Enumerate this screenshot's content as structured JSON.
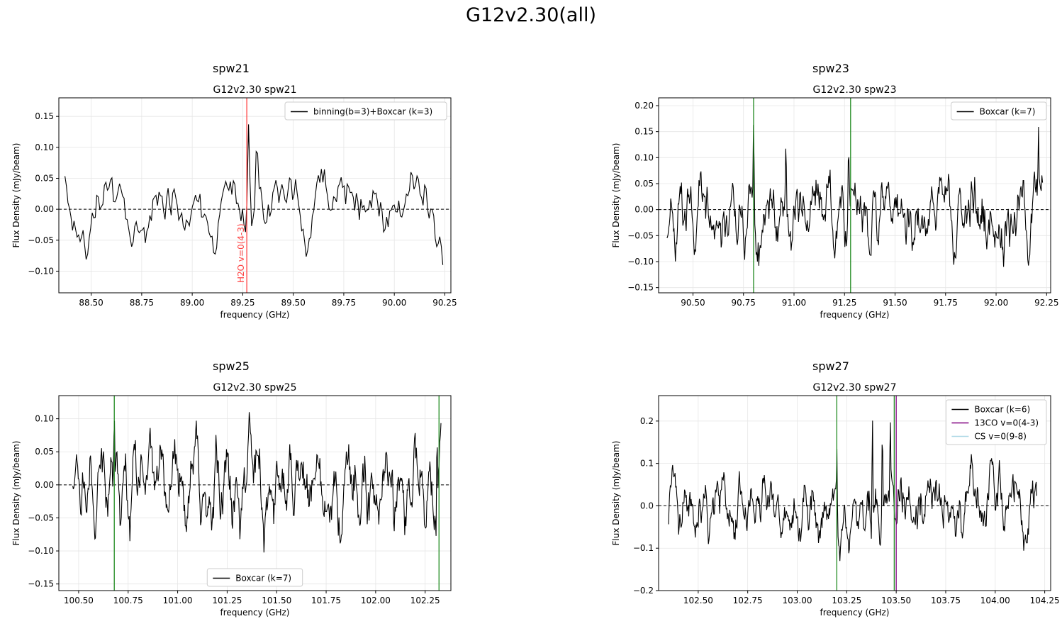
{
  "suptitle": "G12v2.30(all)",
  "chart_data": [
    {
      "type": "line",
      "label": "spw21",
      "title": "G12v2.30 spw21",
      "xlabel": "frequency (GHz)",
      "ylabel": "Flux Density (mJy/beam)",
      "xlim": [
        88.34,
        90.28
      ],
      "ylim": [
        -0.135,
        0.18
      ],
      "xticks": [
        88.5,
        88.75,
        89.0,
        89.25,
        89.5,
        89.75,
        90.0,
        90.25
      ],
      "xticklabels": [
        "88.50",
        "88.75",
        "89.00",
        "89.25",
        "89.50",
        "89.75",
        "90.00",
        "90.25"
      ],
      "yticks": [
        -0.1,
        -0.05,
        0.0,
        0.05,
        0.1,
        0.15
      ],
      "yticklabels": [
        "−0.10",
        "−0.05",
        "0.00",
        "0.05",
        "0.10",
        "0.15"
      ],
      "grid": true,
      "legend": "top-right",
      "series": [
        {
          "name": "binning(b=3)+Boxcar (k=3)",
          "color": "#000000",
          "x_range": [
            88.37,
            90.24
          ],
          "n": 250,
          "seed": 21,
          "noise": 0.045,
          "offset": 0.0,
          "ymin": -0.12,
          "ymax": 0.105,
          "peaks": [
            {
              "x": 89.28,
              "amp": 0.16
            },
            {
              "x": 89.32,
              "amp": 0.13
            }
          ]
        }
      ],
      "vlines": [
        {
          "x": 89.27,
          "color": "#ff4444",
          "label": "H2O v=0(4-3)"
        }
      ],
      "hline": 0.0
    },
    {
      "type": "line",
      "label": "spw23",
      "title": "G12v2.30 spw23",
      "xlabel": "frequency (GHz)",
      "ylabel": "Flux Density (mJy/beam)",
      "xlim": [
        90.33,
        92.27
      ],
      "ylim": [
        -0.16,
        0.215
      ],
      "xticks": [
        90.5,
        90.75,
        91.0,
        91.25,
        91.5,
        91.75,
        92.0,
        92.25
      ],
      "xticklabels": [
        "90.50",
        "90.75",
        "91.00",
        "91.25",
        "91.50",
        "91.75",
        "92.00",
        "92.25"
      ],
      "yticks": [
        -0.15,
        -0.1,
        -0.05,
        0.0,
        0.05,
        0.1,
        0.15,
        0.2
      ],
      "yticklabels": [
        "−0.15",
        "−0.10",
        "−0.05",
        "0.00",
        "0.05",
        "0.10",
        "0.15",
        "0.20"
      ],
      "grid": true,
      "legend": "top-right",
      "series": [
        {
          "name": "Boxcar (k=7)",
          "color": "#000000",
          "x_range": [
            90.37,
            92.23
          ],
          "n": 560,
          "seed": 23,
          "noise": 0.05,
          "offset": -0.01,
          "ymin": -0.14,
          "ymax": 0.11,
          "peaks": [
            {
              "x": 90.8,
              "amp": 0.2
            },
            {
              "x": 90.96,
              "amp": 0.15
            },
            {
              "x": 91.27,
              "amp": 0.145
            },
            {
              "x": 92.21,
              "amp": 0.16
            }
          ]
        }
      ],
      "vlines": [
        {
          "x": 90.8,
          "color": "#228b22"
        },
        {
          "x": 91.28,
          "color": "#228b22"
        }
      ],
      "hline": 0.0
    },
    {
      "type": "line",
      "label": "spw25",
      "title": "G12v2.30 spw25",
      "xlabel": "frequency (GHz)",
      "ylabel": "Flux Density (mJy/beam)",
      "xlim": [
        100.4,
        102.38
      ],
      "ylim": [
        -0.16,
        0.135
      ],
      "xticks": [
        100.5,
        100.75,
        101.0,
        101.25,
        101.5,
        101.75,
        102.0,
        102.25
      ],
      "xticklabels": [
        "100.50",
        "100.75",
        "101.00",
        "101.25",
        "101.50",
        "101.75",
        "102.00",
        "102.25"
      ],
      "yticks": [
        -0.15,
        -0.1,
        -0.05,
        0.0,
        0.05,
        0.1
      ],
      "yticklabels": [
        "−0.15",
        "−0.10",
        "−0.05",
        "0.00",
        "0.05",
        "0.10"
      ],
      "grid": true,
      "legend": "bottom-center",
      "series": [
        {
          "name": "Boxcar (k=7)",
          "color": "#000000",
          "x_range": [
            100.47,
            102.33
          ],
          "n": 600,
          "seed": 25,
          "noise": 0.055,
          "offset": 0.0,
          "ymin": -0.145,
          "ymax": 0.12,
          "peaks": [
            {
              "x": 100.68,
              "amp": 0.12
            },
            {
              "x": 102.31,
              "amp": 0.1
            }
          ]
        }
      ],
      "vlines": [
        {
          "x": 100.68,
          "color": "#228b22"
        },
        {
          "x": 102.32,
          "color": "#228b22"
        }
      ],
      "hline": 0.0
    },
    {
      "type": "line",
      "label": "spw27",
      "title": "G12v2.30 spw27",
      "xlabel": "frequency (GHz)",
      "ylabel": "Flux Density (mJy/beam)",
      "xlim": [
        102.3,
        104.28
      ],
      "ylim": [
        -0.2,
        0.26
      ],
      "xticks": [
        102.5,
        102.75,
        103.0,
        103.25,
        103.5,
        103.75,
        104.0,
        104.25
      ],
      "xticklabels": [
        "102.50",
        "102.75",
        "103.00",
        "103.25",
        "103.50",
        "103.75",
        "104.00",
        "104.25"
      ],
      "yticks": [
        -0.2,
        -0.1,
        0.0,
        0.1,
        0.2
      ],
      "yticklabels": [
        "−0.2",
        "−0.1",
        "0.0",
        "0.1",
        "0.2"
      ],
      "grid": true,
      "legend": "top-right",
      "series": [
        {
          "name": "Boxcar (k=6)",
          "color": "#000000",
          "x_range": [
            102.35,
            104.21
          ],
          "n": 620,
          "seed": 27,
          "noise": 0.065,
          "offset": 0.0,
          "ymin": -0.18,
          "ymax": 0.15,
          "peaks": [
            {
              "x": 103.2,
              "amp": 0.15
            },
            {
              "x": 103.38,
              "amp": 0.24
            },
            {
              "x": 103.43,
              "amp": 0.22
            },
            {
              "x": 103.47,
              "amp": 0.23
            }
          ]
        },
        {
          "name": "13CO v=0(4-3)",
          "color": "#800080",
          "line_only": true
        },
        {
          "name": "CS v=0(9-8)",
          "color": "#add8e6",
          "line_only": true
        }
      ],
      "vlines": [
        {
          "x": 103.2,
          "color": "#228b22"
        },
        {
          "x": 103.49,
          "color": "#228b22"
        },
        {
          "x": 103.5,
          "color": "#800080"
        }
      ],
      "hline": 0.0
    }
  ]
}
